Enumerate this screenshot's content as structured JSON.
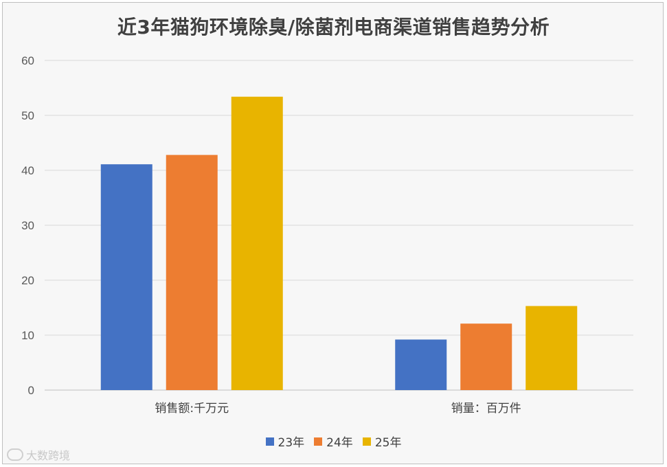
{
  "chart_data": {
    "type": "bar",
    "title": "近3年猫狗环境除臭/除菌剂电商渠道销售趋势分析",
    "categories": [
      "销售额:千万元",
      "销量：百万件"
    ],
    "series": [
      {
        "name": "23年",
        "color": "#4472c4",
        "values": [
          41.1,
          9.2
        ]
      },
      {
        "name": "24年",
        "color": "#ed7d31",
        "values": [
          42.8,
          12.1
        ]
      },
      {
        "name": "25年",
        "color": "#e8b400",
        "values": [
          53.4,
          15.3
        ]
      }
    ],
    "ylim": [
      0,
      60
    ],
    "yticks": [
      0,
      10,
      20,
      30,
      40,
      50,
      60
    ],
    "grid": true,
    "legend": "bottom"
  },
  "footer": {
    "logo_text": "大数跨境"
  }
}
